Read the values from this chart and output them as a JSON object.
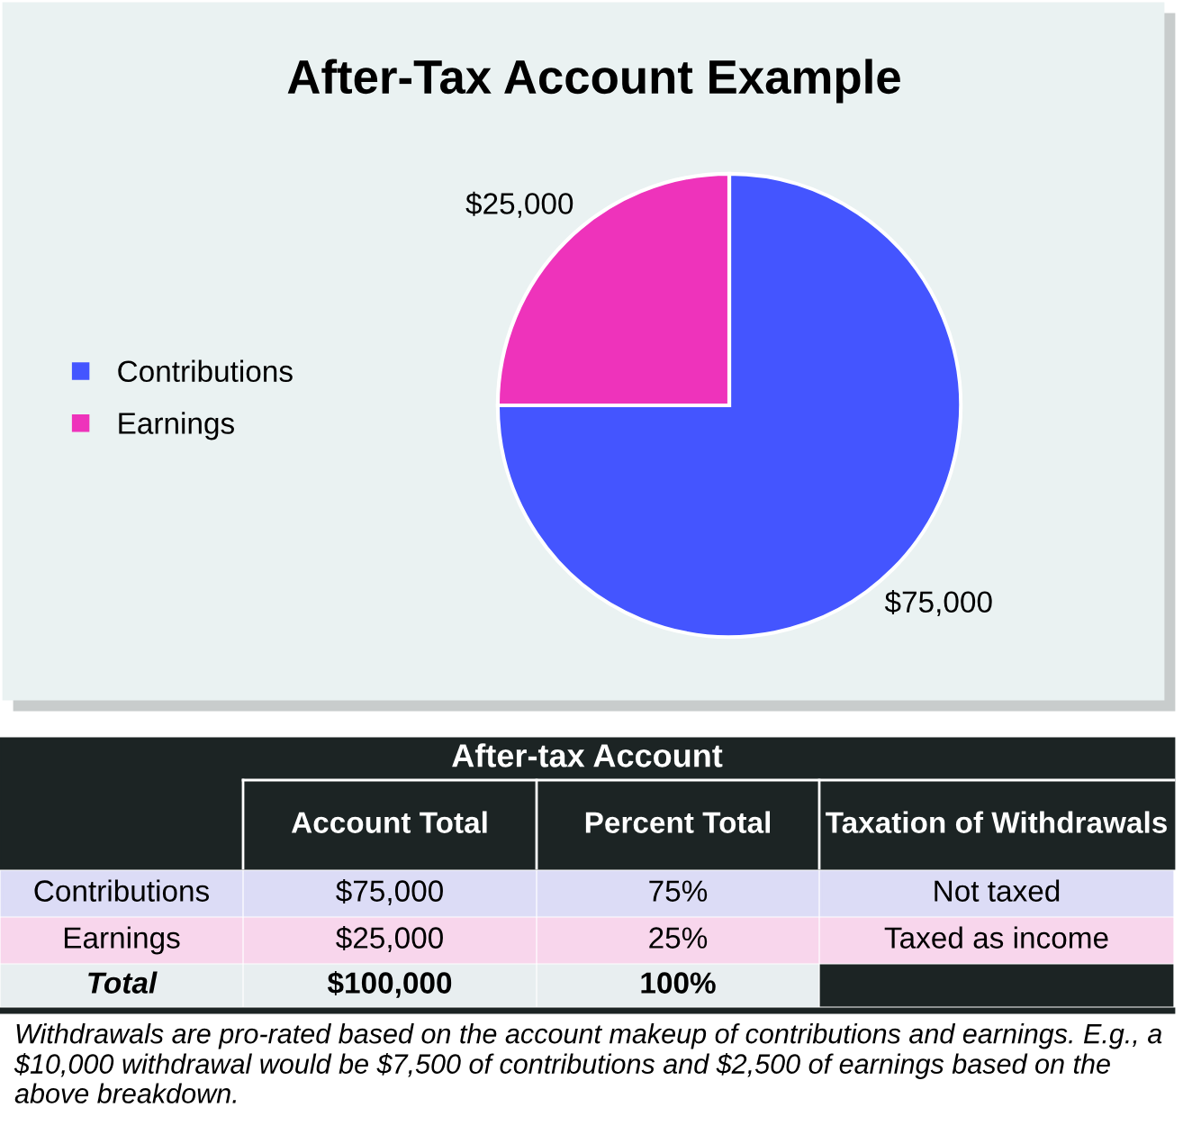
{
  "chart_data": {
    "type": "pie",
    "title": "After-Tax Account Example",
    "categories": [
      "Contributions",
      "Earnings"
    ],
    "values": [
      75000,
      25000
    ],
    "colors": [
      "#4455ff",
      "#ee33bb"
    ],
    "value_labels": [
      "$75,000",
      "$25,000"
    ],
    "legend": "left",
    "annotations": [
      "After-tax Account",
      "Account Total",
      "Percent Total",
      "Taxation of Withdrawals",
      "Contributions",
      "$75,000",
      "75%",
      "Not taxed",
      "Earnings",
      "$25,000",
      "25%",
      "Taxed as income",
      "Total",
      "$100,000",
      "100%",
      "Withdrawals are pro-rated based on the account makeup of contributions and earnings. E.g., a $10,000 withdrawal would be $7,500 of contributions and $2,500 of earnings based on the above breakdown."
    ]
  }
}
